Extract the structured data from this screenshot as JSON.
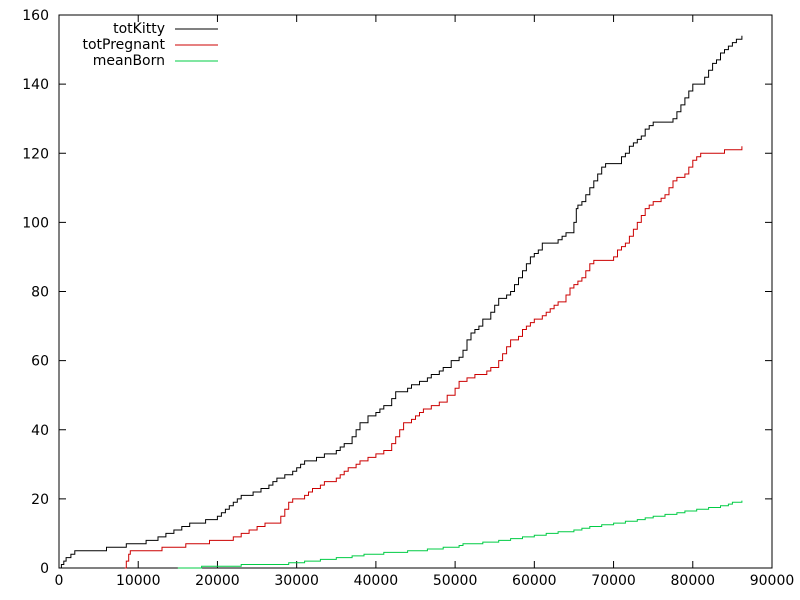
{
  "chart_data": {
    "type": "line",
    "title": "",
    "xlabel": "",
    "ylabel": "",
    "xlim": [
      0,
      90000
    ],
    "ylim": [
      0,
      160
    ],
    "x_ticks": [
      "0",
      "10000",
      "20000",
      "30000",
      "40000",
      "50000",
      "60000",
      "70000",
      "80000",
      "90000"
    ],
    "y_ticks": [
      "0",
      "20",
      "40",
      "60",
      "80",
      "100",
      "120",
      "140",
      "160"
    ],
    "grid": false,
    "legend_placement": "top-left",
    "series": [
      {
        "name": "totKitty",
        "color": "#000000",
        "step": true,
        "points": [
          [
            0,
            0
          ],
          [
            300,
            1
          ],
          [
            600,
            2
          ],
          [
            900,
            3
          ],
          [
            1500,
            4
          ],
          [
            2000,
            5
          ],
          [
            6000,
            6
          ],
          [
            8500,
            7
          ],
          [
            11000,
            8
          ],
          [
            12500,
            9
          ],
          [
            13500,
            10
          ],
          [
            14500,
            11
          ],
          [
            15500,
            12
          ],
          [
            16500,
            13
          ],
          [
            18500,
            14
          ],
          [
            20000,
            15
          ],
          [
            20500,
            16
          ],
          [
            21000,
            17
          ],
          [
            21500,
            18
          ],
          [
            22000,
            19
          ],
          [
            22500,
            20
          ],
          [
            23000,
            21
          ],
          [
            24500,
            22
          ],
          [
            25500,
            23
          ],
          [
            26500,
            24
          ],
          [
            27000,
            25
          ],
          [
            27500,
            26
          ],
          [
            28500,
            27
          ],
          [
            29500,
            28
          ],
          [
            30000,
            29
          ],
          [
            30500,
            30
          ],
          [
            31000,
            31
          ],
          [
            32500,
            32
          ],
          [
            33500,
            33
          ],
          [
            35000,
            34
          ],
          [
            35500,
            35
          ],
          [
            36000,
            36
          ],
          [
            37000,
            38
          ],
          [
            37500,
            40
          ],
          [
            38000,
            42
          ],
          [
            39000,
            44
          ],
          [
            40000,
            45
          ],
          [
            40500,
            46
          ],
          [
            41000,
            47
          ],
          [
            42000,
            49
          ],
          [
            42500,
            51
          ],
          [
            44000,
            52
          ],
          [
            44500,
            53
          ],
          [
            45500,
            54
          ],
          [
            46500,
            55
          ],
          [
            47000,
            56
          ],
          [
            48000,
            57
          ],
          [
            48500,
            58
          ],
          [
            49500,
            60
          ],
          [
            50500,
            61
          ],
          [
            51000,
            63
          ],
          [
            51500,
            66
          ],
          [
            52000,
            68
          ],
          [
            52500,
            69
          ],
          [
            53000,
            70
          ],
          [
            53500,
            72
          ],
          [
            54500,
            74
          ],
          [
            55000,
            76
          ],
          [
            55500,
            78
          ],
          [
            56500,
            79
          ],
          [
            57000,
            80
          ],
          [
            57500,
            82
          ],
          [
            58000,
            84
          ],
          [
            58500,
            86
          ],
          [
            59000,
            88
          ],
          [
            59500,
            90
          ],
          [
            60000,
            91
          ],
          [
            60500,
            92
          ],
          [
            61000,
            94
          ],
          [
            63000,
            95
          ],
          [
            63500,
            96
          ],
          [
            64000,
            97
          ],
          [
            65000,
            100
          ],
          [
            65300,
            104
          ],
          [
            65500,
            105
          ],
          [
            66000,
            106
          ],
          [
            66500,
            108
          ],
          [
            67000,
            110
          ],
          [
            67500,
            112
          ],
          [
            68000,
            114
          ],
          [
            68500,
            116
          ],
          [
            69000,
            117
          ],
          [
            71000,
            119
          ],
          [
            71500,
            120
          ],
          [
            72000,
            122
          ],
          [
            72500,
            123
          ],
          [
            73000,
            124
          ],
          [
            73500,
            125
          ],
          [
            74000,
            127
          ],
          [
            74500,
            128
          ],
          [
            75000,
            129
          ],
          [
            77500,
            130
          ],
          [
            78000,
            132
          ],
          [
            78500,
            134
          ],
          [
            79000,
            136
          ],
          [
            79500,
            138
          ],
          [
            80000,
            140
          ],
          [
            81500,
            142
          ],
          [
            82000,
            144
          ],
          [
            82500,
            146
          ],
          [
            83000,
            147
          ],
          [
            83500,
            149
          ],
          [
            84000,
            150
          ],
          [
            84500,
            151
          ],
          [
            85000,
            152
          ],
          [
            85500,
            153
          ],
          [
            86200,
            154
          ]
        ]
      },
      {
        "name": "totPregnant",
        "color": "#cc0000",
        "step": true,
        "points": [
          [
            8300,
            0
          ],
          [
            8500,
            2
          ],
          [
            8800,
            4
          ],
          [
            9000,
            5
          ],
          [
            13000,
            6
          ],
          [
            16000,
            7
          ],
          [
            19000,
            8
          ],
          [
            22000,
            9
          ],
          [
            23000,
            10
          ],
          [
            24000,
            11
          ],
          [
            25000,
            12
          ],
          [
            26000,
            13
          ],
          [
            28000,
            15
          ],
          [
            28500,
            17
          ],
          [
            29000,
            19
          ],
          [
            29500,
            20
          ],
          [
            31000,
            21
          ],
          [
            31500,
            22
          ],
          [
            32000,
            23
          ],
          [
            33000,
            24
          ],
          [
            33500,
            25
          ],
          [
            35000,
            26
          ],
          [
            35500,
            27
          ],
          [
            36000,
            28
          ],
          [
            36500,
            29
          ],
          [
            37500,
            30
          ],
          [
            38000,
            31
          ],
          [
            39000,
            32
          ],
          [
            40000,
            33
          ],
          [
            41000,
            34
          ],
          [
            42000,
            36
          ],
          [
            42500,
            38
          ],
          [
            43000,
            40
          ],
          [
            43500,
            42
          ],
          [
            44500,
            43
          ],
          [
            45000,
            44
          ],
          [
            45500,
            45
          ],
          [
            46000,
            46
          ],
          [
            47000,
            47
          ],
          [
            48000,
            48
          ],
          [
            49000,
            50
          ],
          [
            50000,
            52
          ],
          [
            50500,
            54
          ],
          [
            51500,
            55
          ],
          [
            52500,
            56
          ],
          [
            54000,
            57
          ],
          [
            54500,
            58
          ],
          [
            55500,
            60
          ],
          [
            56000,
            62
          ],
          [
            56500,
            64
          ],
          [
            57000,
            66
          ],
          [
            58000,
            67
          ],
          [
            58500,
            69
          ],
          [
            59000,
            70
          ],
          [
            59500,
            71
          ],
          [
            60000,
            72
          ],
          [
            61000,
            73
          ],
          [
            61500,
            74
          ],
          [
            62000,
            75
          ],
          [
            62500,
            76
          ],
          [
            63000,
            77
          ],
          [
            64000,
            79
          ],
          [
            64500,
            81
          ],
          [
            65000,
            82
          ],
          [
            65500,
            83
          ],
          [
            66000,
            84
          ],
          [
            66500,
            86
          ],
          [
            67000,
            88
          ],
          [
            67500,
            89
          ],
          [
            70000,
            90
          ],
          [
            70500,
            92
          ],
          [
            71000,
            93
          ],
          [
            71500,
            94
          ],
          [
            72000,
            96
          ],
          [
            72500,
            98
          ],
          [
            73000,
            100
          ],
          [
            73500,
            102
          ],
          [
            74000,
            104
          ],
          [
            74500,
            105
          ],
          [
            75000,
            106
          ],
          [
            76000,
            107
          ],
          [
            76500,
            108
          ],
          [
            77000,
            110
          ],
          [
            77500,
            112
          ],
          [
            78000,
            113
          ],
          [
            79000,
            114
          ],
          [
            79500,
            116
          ],
          [
            80000,
            118
          ],
          [
            80500,
            119
          ],
          [
            81000,
            120
          ],
          [
            84000,
            121
          ],
          [
            86200,
            122
          ]
        ]
      },
      {
        "name": "meanBorn",
        "color": "#00cc44",
        "step": true,
        "points": [
          [
            15000,
            0
          ],
          [
            18000,
            0.5
          ],
          [
            23000,
            1
          ],
          [
            29000,
            1.5
          ],
          [
            31000,
            2
          ],
          [
            33000,
            2.5
          ],
          [
            35000,
            3
          ],
          [
            37000,
            3.5
          ],
          [
            38500,
            4
          ],
          [
            41000,
            4.5
          ],
          [
            44000,
            5
          ],
          [
            46500,
            5.5
          ],
          [
            48500,
            6
          ],
          [
            50500,
            6.5
          ],
          [
            51000,
            7
          ],
          [
            53500,
            7.5
          ],
          [
            55500,
            8
          ],
          [
            57000,
            8.5
          ],
          [
            58500,
            9
          ],
          [
            60000,
            9.5
          ],
          [
            61500,
            10
          ],
          [
            63000,
            10.5
          ],
          [
            65000,
            11
          ],
          [
            66000,
            11.5
          ],
          [
            67000,
            12
          ],
          [
            68500,
            12.5
          ],
          [
            70000,
            13
          ],
          [
            71500,
            13.5
          ],
          [
            73000,
            14
          ],
          [
            74000,
            14.5
          ],
          [
            75000,
            15
          ],
          [
            76500,
            15.5
          ],
          [
            78000,
            16
          ],
          [
            79000,
            16.5
          ],
          [
            80500,
            17
          ],
          [
            82000,
            17.5
          ],
          [
            83500,
            18
          ],
          [
            84500,
            18.5
          ],
          [
            85000,
            19
          ],
          [
            86200,
            19.5
          ]
        ]
      }
    ]
  }
}
